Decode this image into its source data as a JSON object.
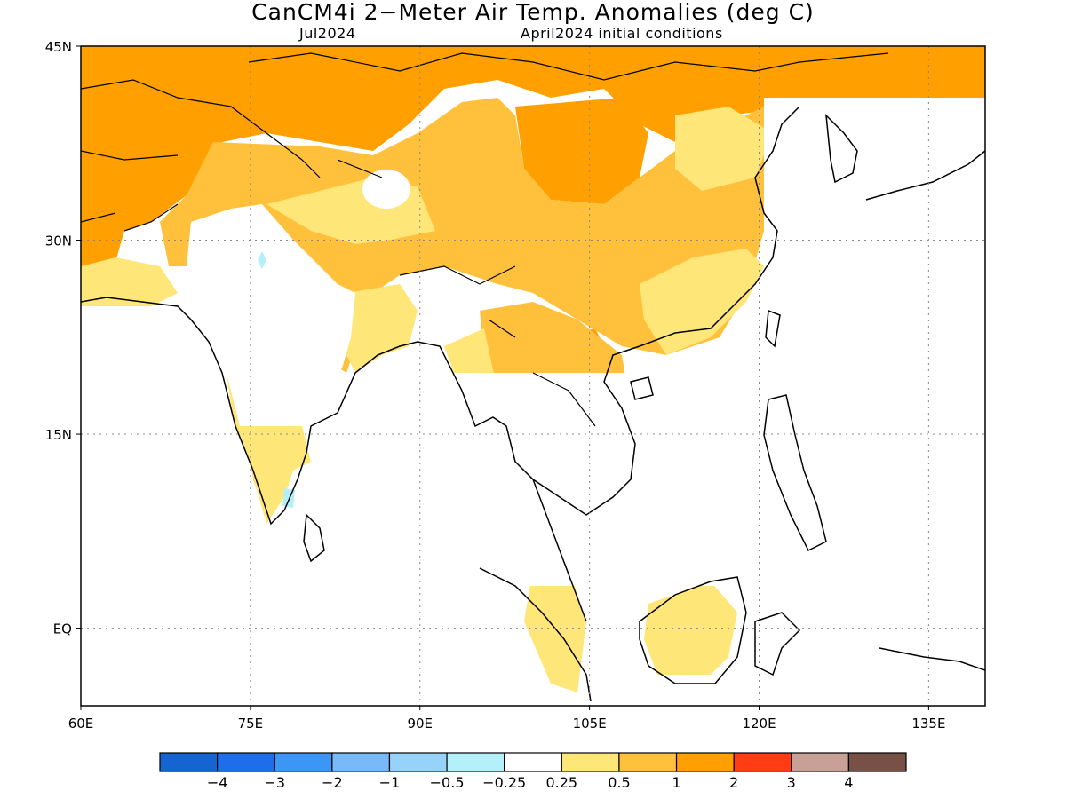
{
  "title": "CanCM4i 2−Meter Air Temp. Anomalies (deg C)",
  "subtitle_left": "Jul2024",
  "subtitle_right": "April2024 initial conditions",
  "map": {
    "lon_range": [
      60,
      140
    ],
    "lat_range": [
      -6,
      45
    ],
    "x_ticks": [
      {
        "value": 60,
        "label": "60E"
      },
      {
        "value": 75,
        "label": "75E"
      },
      {
        "value": 90,
        "label": "90E"
      },
      {
        "value": 105,
        "label": "105E"
      },
      {
        "value": 120,
        "label": "120E"
      },
      {
        "value": 135,
        "label": "135E"
      }
    ],
    "y_ticks": [
      {
        "value": 45,
        "label": "45N"
      },
      {
        "value": 30,
        "label": "30N"
      },
      {
        "value": 15,
        "label": "15N"
      },
      {
        "value": 0,
        "label": "EQ"
      }
    ],
    "gridlines": true
  },
  "colorbar": {
    "bins": [
      {
        "color": "#1464d2"
      },
      {
        "color": "#1e6eeb"
      },
      {
        "color": "#3c96f5"
      },
      {
        "color": "#78b9fa"
      },
      {
        "color": "#96d2fa"
      },
      {
        "color": "#b4f0fa"
      },
      {
        "color": "#ffffff"
      },
      {
        "color": "#ffe678"
      },
      {
        "color": "#ffc03c"
      },
      {
        "color": "#ffa000"
      },
      {
        "color": "#ff3c14"
      },
      {
        "color": "#c8a096"
      },
      {
        "color": "#785046"
      }
    ],
    "labels": [
      "−4",
      "−3",
      "−2",
      "−1",
      "−0.5",
      "−0.25",
      "0.25",
      "0.5",
      "1",
      "2",
      "3",
      "4"
    ]
  },
  "colors": {
    "anom_0_5_1": "#ffc03c",
    "anom_1_2": "#ffa000",
    "anom_025_05": "#ffe678",
    "anom_neg_05_025": "#b4f0fa",
    "coast": "#000000"
  }
}
